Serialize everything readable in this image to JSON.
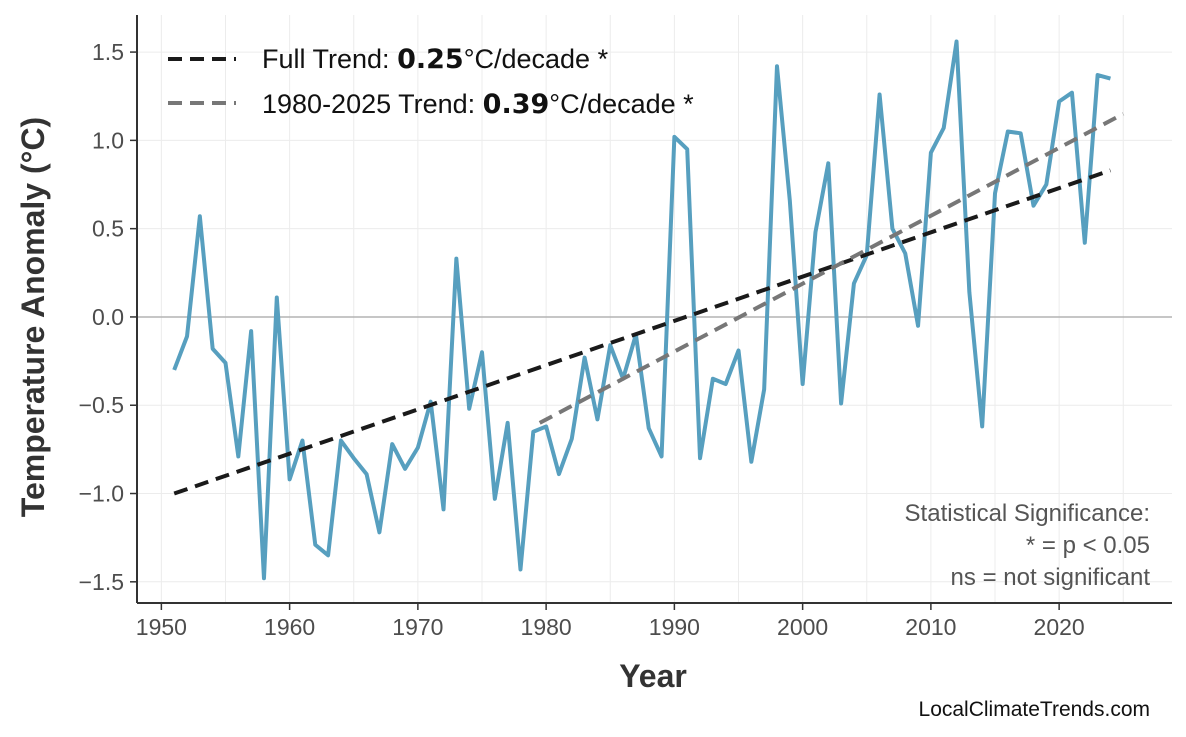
{
  "chart_data": {
    "type": "line",
    "xlabel": "Year",
    "ylabel": "Temperature Anomaly (°C)",
    "xlim": [
      1948.1,
      2028.8
    ],
    "ylim": [
      -1.62,
      1.71
    ],
    "xticks": [
      "1950",
      "1960",
      "1970",
      "1980",
      "1990",
      "2000",
      "2010",
      "2020"
    ],
    "xtick_values": [
      1950,
      1960,
      1970,
      1980,
      1990,
      2000,
      2010,
      2020
    ],
    "yticks": [
      "−1.5",
      "−1.0",
      "−0.5",
      "0.0",
      "0.5",
      "1.0",
      "1.5"
    ],
    "ytick_values": [
      -1.5,
      -1.0,
      -0.5,
      0.0,
      0.5,
      1.0,
      1.5
    ],
    "grid": true,
    "zero_line": true,
    "series": [
      {
        "color": "#579fbf",
        "x": [
          1951,
          1952,
          1953,
          1954,
          1955,
          1956,
          1957,
          1958,
          1959,
          1960,
          1961,
          1962,
          1963,
          1964,
          1965,
          1966,
          1967,
          1968,
          1969,
          1970,
          1971,
          1972,
          1973,
          1974,
          1975,
          1976,
          1977,
          1978,
          1979,
          1980,
          1981,
          1982,
          1983,
          1984,
          1985,
          1986,
          1987,
          1988,
          1989,
          1990,
          1991,
          1992,
          1993,
          1994,
          1995,
          1996,
          1997,
          1998,
          1999,
          2000,
          2001,
          2002,
          2003,
          2004,
          2005,
          2006,
          2007,
          2008,
          2009,
          2010,
          2011,
          2012,
          2013,
          2014,
          2015,
          2016,
          2017,
          2018,
          2019,
          2020,
          2021,
          2022,
          2023,
          2024
        ],
        "y": [
          -0.3,
          -0.11,
          0.57,
          -0.18,
          -0.26,
          -0.79,
          -0.08,
          -1.48,
          0.11,
          -0.92,
          -0.7,
          -1.29,
          -1.35,
          -0.7,
          -0.8,
          -0.89,
          -1.22,
          -0.72,
          -0.86,
          -0.74,
          -0.48,
          -1.09,
          0.33,
          -0.52,
          -0.2,
          -1.03,
          -0.6,
          -1.43,
          -0.65,
          -0.62,
          -0.89,
          -0.69,
          -0.23,
          -0.58,
          -0.16,
          -0.35,
          -0.1,
          -0.63,
          -0.79,
          1.02,
          0.95,
          -0.8,
          -0.35,
          -0.38,
          -0.19,
          -0.82,
          -0.41,
          1.42,
          0.66,
          -0.38,
          0.48,
          0.87,
          -0.49,
          0.19,
          0.35,
          1.26,
          0.5,
          0.36,
          -0.05,
          0.93,
          1.07,
          1.56,
          0.14,
          -0.62,
          0.7,
          1.05,
          1.04,
          0.63,
          0.75,
          1.22,
          1.27,
          0.42,
          1.37,
          1.35
        ]
      }
    ],
    "trend_lines": [
      {
        "name_prefix": "Full Trend: ",
        "rate": "0.25",
        "unit": "°C/decade *",
        "color": "#1a1a1a",
        "x": [
          1951,
          2024
        ],
        "y": [
          -1.0,
          0.83
        ]
      },
      {
        "name_prefix": "1980-2025 Trend: ",
        "rate": "0.39",
        "unit": "°C/decade *",
        "color": "#777777",
        "x": [
          1979.5,
          2025
        ],
        "y": [
          -0.6,
          1.15
        ]
      }
    ],
    "legend_position": "top-left",
    "annotation": [
      "Statistical Significance:",
      "* = p < 0.05",
      "ns = not significant"
    ],
    "watermark": "LocalClimateTrends.com"
  }
}
